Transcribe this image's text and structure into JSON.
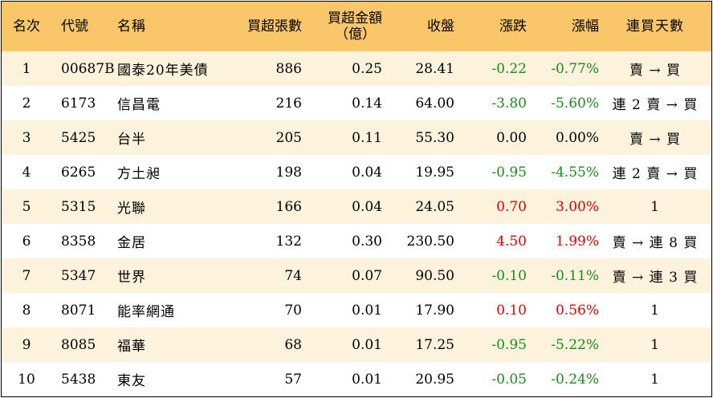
{
  "headers": {
    "rank": "名次",
    "code": "代號",
    "name": "名稱",
    "net_buy_lots": "買超張數",
    "net_buy_amount_line1": "買超金額",
    "net_buy_amount_line2": "（億）",
    "close": "收盤",
    "change": "漲跌",
    "change_pct": "漲幅",
    "consecutive_days": "連買天數"
  },
  "colors": {
    "header_bg": "#f9c76a",
    "odd_row_bg": "#fdf3dc",
    "even_row_bg": "#ffffff",
    "up": "#e00000",
    "down": "#1a8a1a"
  },
  "rows": [
    {
      "rank": "1",
      "code": "00687B",
      "name": "國泰20年美債",
      "lots": "886",
      "amount": "0.25",
      "close": "28.41",
      "change": "-0.22",
      "pct": "-0.77%",
      "days": "賣 → 買",
      "dir": "neg"
    },
    {
      "rank": "2",
      "code": "6173",
      "name": "信昌電",
      "lots": "216",
      "amount": "0.14",
      "close": "64.00",
      "change": "-3.80",
      "pct": "-5.60%",
      "days": "連 2 賣 → 買",
      "dir": "neg"
    },
    {
      "rank": "3",
      "code": "5425",
      "name": "台半",
      "lots": "205",
      "amount": "0.11",
      "close": "55.30",
      "change": "0.00",
      "pct": "0.00%",
      "days": "賣 → 買",
      "dir": "zero"
    },
    {
      "rank": "4",
      "code": "6265",
      "name": "方土昶",
      "lots": "198",
      "amount": "0.04",
      "close": "19.95",
      "change": "-0.95",
      "pct": "-4.55%",
      "days": "連 2 賣 → 買",
      "dir": "neg"
    },
    {
      "rank": "5",
      "code": "5315",
      "name": "光聯",
      "lots": "166",
      "amount": "0.04",
      "close": "24.05",
      "change": "0.70",
      "pct": "3.00%",
      "days": "1",
      "dir": "pos"
    },
    {
      "rank": "6",
      "code": "8358",
      "name": "金居",
      "lots": "132",
      "amount": "0.30",
      "close": "230.50",
      "change": "4.50",
      "pct": "1.99%",
      "days": "賣 → 連 8 買",
      "dir": "pos"
    },
    {
      "rank": "7",
      "code": "5347",
      "name": "世界",
      "lots": "74",
      "amount": "0.07",
      "close": "90.50",
      "change": "-0.10",
      "pct": "-0.11%",
      "days": "賣 → 連 3 買",
      "dir": "neg"
    },
    {
      "rank": "8",
      "code": "8071",
      "name": "能率網通",
      "lots": "70",
      "amount": "0.01",
      "close": "17.90",
      "change": "0.10",
      "pct": "0.56%",
      "days": "1",
      "dir": "pos"
    },
    {
      "rank": "9",
      "code": "8085",
      "name": "福華",
      "lots": "68",
      "amount": "0.01",
      "close": "17.25",
      "change": "-0.95",
      "pct": "-5.22%",
      "days": "1",
      "dir": "neg"
    },
    {
      "rank": "10",
      "code": "5438",
      "name": "東友",
      "lots": "57",
      "amount": "0.01",
      "close": "20.95",
      "change": "-0.05",
      "pct": "-0.24%",
      "days": "1",
      "dir": "neg"
    }
  ]
}
